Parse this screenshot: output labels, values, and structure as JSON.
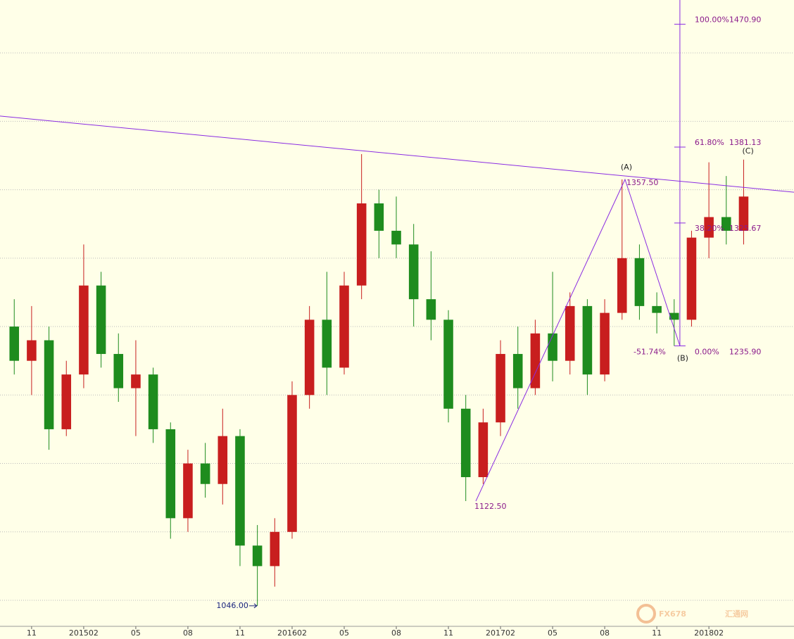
{
  "chart_data": {
    "type": "candlestick",
    "up_color": "#c81e1e",
    "down_color": "#1e8c1e",
    "xlim": [
      -1.82,
      43.9
    ],
    "ylim": [
      1031,
      1488.6
    ],
    "xticks": [
      {
        "value": 0,
        "label": "11"
      },
      {
        "value": 3,
        "label": "201502"
      },
      {
        "value": 6,
        "label": "05"
      },
      {
        "value": 9,
        "label": "08"
      },
      {
        "value": 12,
        "label": "11"
      },
      {
        "value": 15,
        "label": "201602"
      },
      {
        "value": 18,
        "label": "05"
      },
      {
        "value": 21,
        "label": "08"
      },
      {
        "value": 24,
        "label": "11"
      },
      {
        "value": 27,
        "label": "201702"
      },
      {
        "value": 30,
        "label": "05"
      },
      {
        "value": 33,
        "label": "08"
      },
      {
        "value": 36,
        "label": "11"
      },
      {
        "value": 39,
        "label": "201802"
      }
    ],
    "ygrid": [
      1050,
      1100,
      1150,
      1200,
      1250,
      1300,
      1350,
      1400,
      1450
    ],
    "x": [
      -1,
      0,
      1,
      2,
      3,
      4,
      5,
      6,
      7,
      8,
      9,
      10,
      11,
      12,
      13,
      14,
      15,
      16,
      17,
      18,
      19,
      20,
      21,
      22,
      23,
      24,
      25,
      26,
      27,
      28,
      29,
      30,
      31,
      32,
      33,
      34,
      35,
      36,
      37,
      38,
      39,
      40,
      41
    ],
    "open": [
      1250,
      1225,
      1240,
      1175,
      1215,
      1280,
      1230,
      1205,
      1215,
      1175,
      1110,
      1150,
      1135,
      1170,
      1090,
      1075,
      1100,
      1200,
      1255,
      1220,
      1280,
      1340,
      1320,
      1310,
      1270,
      1255,
      1190,
      1140,
      1180,
      1230,
      1205,
      1245,
      1225,
      1265,
      1215,
      1260,
      1300,
      1265,
      1260,
      1255,
      1315,
      1330,
      1320
    ],
    "high": [
      1270,
      1265,
      1250,
      1225,
      1310,
      1290,
      1245,
      1240,
      1220,
      1180,
      1160,
      1165,
      1190,
      1175,
      1105,
      1110,
      1210,
      1265,
      1290,
      1290,
      1376,
      1350,
      1345,
      1325,
      1305,
      1262,
      1200,
      1190,
      1240,
      1250,
      1255,
      1290,
      1275,
      1270,
      1270,
      1357.5,
      1310,
      1275,
      1270,
      1320,
      1370,
      1360,
      1372
    ],
    "low": [
      1215,
      1200,
      1160,
      1170,
      1205,
      1220,
      1195,
      1170,
      1165,
      1095,
      1100,
      1125,
      1120,
      1075,
      1046,
      1060,
      1095,
      1190,
      1200,
      1215,
      1270,
      1300,
      1300,
      1250,
      1240,
      1180,
      1122.5,
      1135,
      1170,
      1190,
      1200,
      1210,
      1215,
      1200,
      1210,
      1255,
      1255,
      1245,
      1235.9,
      1250,
      1300,
      1310,
      1310
    ],
    "close": [
      1225,
      1240,
      1175,
      1215,
      1280,
      1230,
      1205,
      1215,
      1175,
      1110,
      1150,
      1135,
      1170,
      1090,
      1075,
      1100,
      1200,
      1255,
      1220,
      1280,
      1340,
      1320,
      1310,
      1270,
      1255,
      1190,
      1140,
      1180,
      1230,
      1205,
      1245,
      1225,
      1265,
      1215,
      1260,
      1300,
      1265,
      1260,
      1255,
      1315,
      1330,
      1320,
      1345
    ],
    "trendline": {
      "x": [
        -1.82,
        43.9
      ],
      "y": [
        1403.8,
        1348.2
      ]
    },
    "waves": [
      {
        "x": 25.58,
        "value": 1122.5,
        "label": "1122.50"
      },
      {
        "x": 34.17,
        "value": 1357.5,
        "label": "1357.50",
        "name": "(A)"
      },
      {
        "x": 37.33,
        "value": 1235.9,
        "name": "(B)"
      }
    ],
    "c_label": {
      "name": "(C)",
      "x": 41.25,
      "value": 1372
    },
    "low_label": {
      "x": 12.97,
      "value": 1046,
      "label": "1046.00"
    },
    "fib_x": 37.33,
    "fib_levels": [
      {
        "percent": "100.00%",
        "value": 1470.9,
        "label": "1470.90"
      },
      {
        "percent": "61.80%",
        "value": 1381.13,
        "label": "1381.13"
      },
      {
        "percent": "38.20%",
        "value": 1325.67,
        "label": "1325.67"
      },
      {
        "percent": "0.00%",
        "value": 1235.9,
        "label": "1235.90"
      }
    ],
    "b_retracement": "-51.74%",
    "watermark": [
      "FX678",
      "汇通网"
    ]
  }
}
